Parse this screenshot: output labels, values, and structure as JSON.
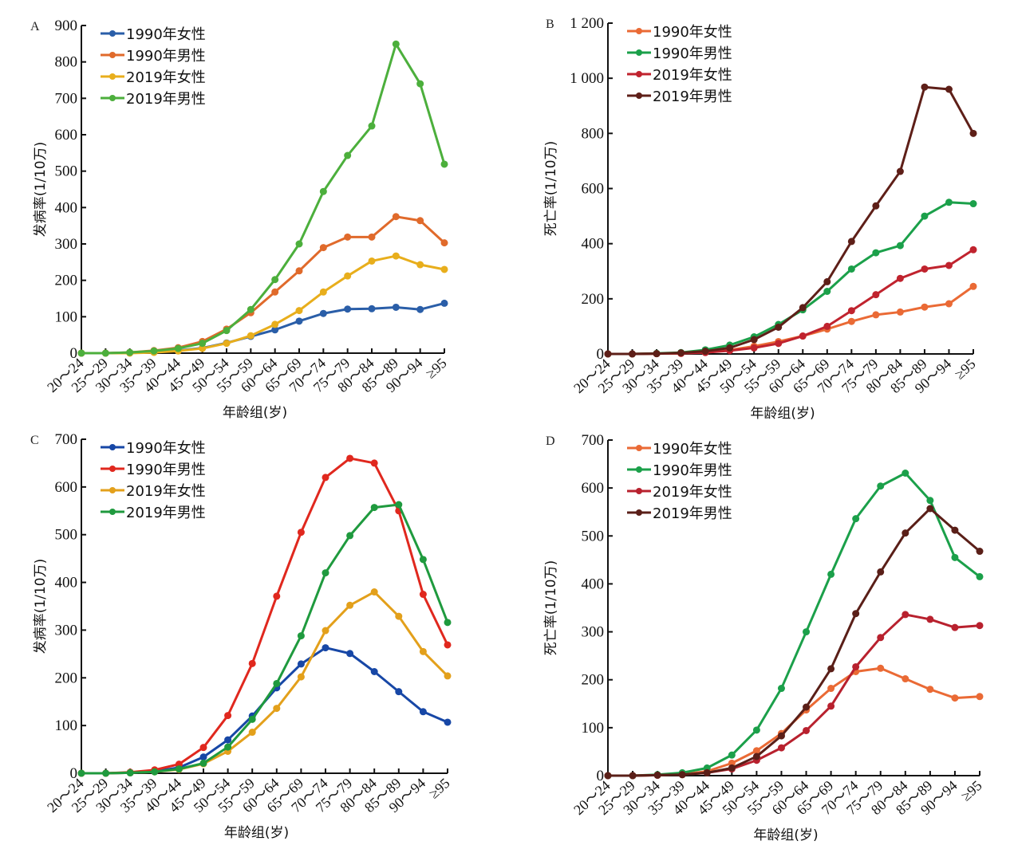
{
  "chart_data": [
    {
      "type": "line",
      "panel": "A",
      "title": "",
      "xlabel": "年龄组(岁)",
      "ylabel": "发病率(1/10万)",
      "ylim": [
        0,
        900
      ],
      "yticks": [
        0,
        100,
        200,
        300,
        400,
        500,
        600,
        700,
        800,
        900
      ],
      "ytick_labels": [
        "0",
        "100",
        "200",
        "300",
        "400",
        "500",
        "600",
        "700",
        "800",
        "900"
      ],
      "categories": [
        "20～24",
        "25～29",
        "30～34",
        "35～39",
        "40～44",
        "45～49",
        "50～54",
        "55～59",
        "60～64",
        "65～69",
        "70～74",
        "75～79",
        "80～84",
        "85～89",
        "90～94",
        "≥95"
      ],
      "legend_position": "top-left",
      "grid": false,
      "series": [
        {
          "name": "1990年女性",
          "color": "#2a5ea8",
          "values": [
            0,
            0,
            1,
            3,
            7,
            14,
            28,
            46,
            64,
            88,
            109,
            121,
            122,
            126,
            120,
            137
          ]
        },
        {
          "name": "1990年男性",
          "color": "#e06a2b",
          "values": [
            0,
            0,
            2,
            7,
            15,
            32,
            66,
            111,
            168,
            226,
            290,
            319,
            319,
            375,
            364,
            303
          ]
        },
        {
          "name": "2019年女性",
          "color": "#e8ae1c",
          "values": [
            0,
            0,
            0,
            2,
            6,
            13,
            27,
            48,
            79,
            117,
            168,
            212,
            253,
            267,
            243,
            230
          ]
        },
        {
          "name": "2019年男性",
          "color": "#4caf3c",
          "values": [
            0,
            0,
            2,
            6,
            13,
            27,
            62,
            120,
            202,
            300,
            444,
            543,
            624,
            849,
            740,
            519
          ]
        }
      ]
    },
    {
      "type": "line",
      "panel": "B",
      "title": "",
      "xlabel": "年龄组(岁)",
      "ylabel": "死亡率(1/10万)",
      "ylim": [
        0,
        1200
      ],
      "yticks": [
        0,
        200,
        400,
        600,
        800,
        1000,
        1200
      ],
      "ytick_labels": [
        "0",
        "200",
        "400",
        "600",
        "800",
        "1 000",
        "1 200"
      ],
      "categories": [
        "20～24",
        "25～29",
        "30～34",
        "35～39",
        "40～44",
        "45～49",
        "50～54",
        "55～59",
        "60～64",
        "65～69",
        "70～74",
        "75～79",
        "80～84",
        "85～89",
        "90～94",
        "≥95"
      ],
      "legend_position": "top-left",
      "grid": false,
      "series": [
        {
          "name": "1990年女性",
          "color": "#ea6a35",
          "values": [
            0,
            0,
            1,
            2,
            6,
            14,
            28,
            45,
            65,
            90,
            118,
            142,
            152,
            170,
            182,
            245
          ]
        },
        {
          "name": "1990年男性",
          "color": "#1ba04a",
          "values": [
            0,
            0,
            2,
            5,
            15,
            32,
            62,
            107,
            160,
            227,
            308,
            367,
            393,
            500,
            550,
            545
          ]
        },
        {
          "name": "2019年女性",
          "color": "#c0232e",
          "values": [
            0,
            0,
            1,
            2,
            5,
            12,
            22,
            38,
            65,
            100,
            157,
            215,
            274,
            308,
            321,
            378
          ]
        },
        {
          "name": "2019年男性",
          "color": "#5e1f18",
          "values": [
            0,
            0,
            1,
            4,
            10,
            22,
            52,
            97,
            168,
            262,
            408,
            537,
            662,
            968,
            960,
            800
          ]
        }
      ]
    },
    {
      "type": "line",
      "panel": "C",
      "title": "",
      "xlabel": "年龄组(岁)",
      "ylabel": "发病率(1/10万)",
      "ylim": [
        0,
        700
      ],
      "yticks": [
        0,
        100,
        200,
        300,
        400,
        500,
        600,
        700
      ],
      "ytick_labels": [
        "0",
        "100",
        "200",
        "300",
        "400",
        "500",
        "600",
        "700"
      ],
      "categories": [
        "20～24",
        "25～29",
        "30～34",
        "35～39",
        "40～44",
        "45～49",
        "50～54",
        "55～59",
        "60～64",
        "65～69",
        "70～74",
        "75～79",
        "80～84",
        "85～89",
        "90～94",
        "≥95"
      ],
      "legend_position": "top-left",
      "grid": false,
      "series": [
        {
          "name": "1990年女性",
          "color": "#1747a6",
          "values": [
            0,
            0,
            1,
            4,
            12,
            34,
            70,
            120,
            179,
            229,
            263,
            251,
            213,
            171,
            129,
            107
          ]
        },
        {
          "name": "1990年男性",
          "color": "#e0281e",
          "values": [
            0,
            0,
            2,
            7,
            19,
            54,
            121,
            230,
            371,
            505,
            620,
            660,
            650,
            550,
            375,
            269
          ]
        },
        {
          "name": "2019年女性",
          "color": "#e3a01b",
          "values": [
            0,
            0,
            1,
            3,
            8,
            20,
            46,
            86,
            136,
            202,
            299,
            352,
            380,
            329,
            255,
            204
          ]
        },
        {
          "name": "2019年男性",
          "color": "#1f9a3e",
          "values": [
            0,
            0,
            1,
            3,
            9,
            21,
            55,
            113,
            188,
            288,
            420,
            498,
            557,
            563,
            448,
            316
          ]
        }
      ]
    },
    {
      "type": "line",
      "panel": "D",
      "title": "",
      "xlabel": "年龄组(岁)",
      "ylabel": "死亡率(1/10万)",
      "ylim": [
        0,
        700
      ],
      "yticks": [
        0,
        100,
        200,
        300,
        400,
        500,
        600,
        700
      ],
      "ytick_labels": [
        "0",
        "100",
        "200",
        "300",
        "400",
        "500",
        "600",
        "700"
      ],
      "categories": [
        "20～24",
        "25～29",
        "30～34",
        "35～39",
        "40～44",
        "45～49",
        "50～54",
        "55～59",
        "60～64",
        "65～69",
        "70～74",
        "75～79",
        "80～84",
        "85～89",
        "90～94",
        "≥95"
      ],
      "legend_position": "top-left",
      "grid": false,
      "series": [
        {
          "name": "1990年女性",
          "color": "#ea6a35",
          "values": [
            0,
            0,
            1,
            3,
            9,
            26,
            52,
            88,
            137,
            182,
            217,
            224,
            202,
            180,
            162,
            165
          ]
        },
        {
          "name": "1990年男性",
          "color": "#1ba04a",
          "values": [
            0,
            0,
            2,
            6,
            16,
            43,
            95,
            182,
            300,
            420,
            536,
            604,
            631,
            574,
            455,
            415
          ]
        },
        {
          "name": "2019年女性",
          "color": "#b8212e",
          "values": [
            0,
            0,
            1,
            2,
            6,
            14,
            32,
            58,
            94,
            145,
            227,
            288,
            336,
            326,
            309,
            313
          ]
        },
        {
          "name": "2019年男性",
          "color": "#5a1f18",
          "values": [
            0,
            0,
            1,
            2,
            6,
            16,
            40,
            83,
            143,
            223,
            338,
            425,
            506,
            557,
            512,
            468
          ]
        }
      ]
    }
  ]
}
